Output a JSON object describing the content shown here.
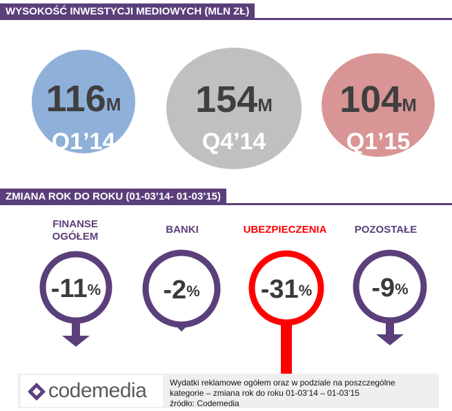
{
  "section1": {
    "title": "WYSOKOŚĆ INWESTYCJI MEDIOWYCH (MLN ZŁ)"
  },
  "section2": {
    "title": "ZMIANA ROK DO ROKU (01-03’14- 01-03’15)"
  },
  "chart_data": [
    {
      "type": "bar",
      "title": "WYSOKOŚĆ INWESTYCJI MEDIOWYCH (MLN ZŁ)",
      "categories": [
        "Q1’14",
        "Q4’14",
        "Q1’15"
      ],
      "values": [
        116,
        154,
        104
      ],
      "unit": "M",
      "colors": [
        "#8fb0d9",
        "#c0c0c0",
        "#d99595"
      ]
    },
    {
      "type": "bar",
      "title": "ZMIANA ROK DO ROKU (01-03’14- 01-03’15)",
      "categories": [
        "FINANSE OGÓŁEM",
        "BANKI",
        "UBEZPIECZENIA",
        "POZOSTAŁE"
      ],
      "values": [
        -11,
        -2,
        -31,
        -9
      ],
      "unit": "%",
      "colors": [
        "#5b3f7b",
        "#5b3f7b",
        "#ff0000",
        "#5b3f7b"
      ]
    }
  ],
  "bubbles": [
    {
      "value": "116",
      "unit": "M",
      "period": "Q1’14"
    },
    {
      "value": "154",
      "unit": "M",
      "period": "Q4’14"
    },
    {
      "value": "104",
      "unit": "M",
      "period": "Q1’15"
    }
  ],
  "rings": [
    {
      "line1": "FINANSE",
      "line2": "OGÓŁEM",
      "value": "-11",
      "unit": "%"
    },
    {
      "line1": "BANKI",
      "line2": "",
      "value": "-2",
      "unit": "%"
    },
    {
      "line1": "UBEZPIECZENIA",
      "line2": "",
      "value": "-31",
      "unit": "%"
    },
    {
      "line1": "POZOSTAŁE",
      "line2": "",
      "value": "-9",
      "unit": "%"
    }
  ],
  "colors": {
    "accent": "#5b3f7b",
    "highlight": "#ff0000",
    "text": "#3a3a3a"
  },
  "footer": {
    "logo_text": "codemedia",
    "line1": "Wydatki reklamowe ogółem oraz w podziale na poszczególne",
    "line2": "kategorie – zmiana rok do roku 01-03’14 – 01-03’15",
    "line3": "źródło: Codemedia"
  }
}
